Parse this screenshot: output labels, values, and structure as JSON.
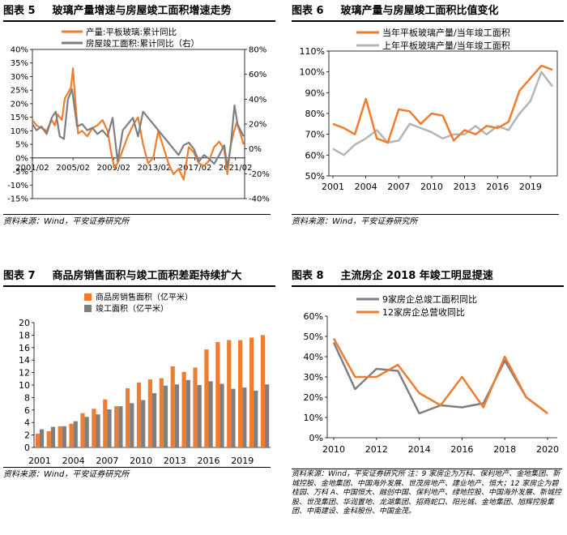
{
  "colors": {
    "orange": "#EE7D31",
    "gray": "#7F7F7F",
    "lightgray": "#B5B5B5"
  },
  "panels": [
    {
      "num": "图表 5",
      "title": "玻璃产量增速与房屋竣工面积增速走势",
      "source": "资料来源：Wind，平安证券研究所"
    },
    {
      "num": "图表 6",
      "title": "玻璃产量与房屋竣工面积比值变化",
      "source": "资料来源：Wind，平安证券研究所"
    },
    {
      "num": "图表 7",
      "title": "商品房销售面积与竣工面积差距持续扩大",
      "source": "资料来源：Wind，平安证券研究所"
    },
    {
      "num": "图表 8",
      "title": "主流房企 2018 年竣工明显提速",
      "source": "资料来源：Wind，平安证券研究所    注：9 家房企为万科、保利地产、金地集团、新城控股、金地集团、中国海外发展、世茂房地产、建业地产、恒大；12 家房企为碧桂园、万科 A、中国恒大、融创中国、保利地产、绿地控股、中国海外发展、新城控股、世茂集团、华润置地、龙湖集团、招商蛇口、阳光城、金地集团、旭辉控股集团、中南建设、金科股份、中国金茂。"
    }
  ],
  "chart_data": [
    {
      "type": "line",
      "title": "玻璃产量增速与房屋竣工面积增速走势",
      "x_tick_labels": [
        "2001/02",
        "2005/02",
        "2009/02",
        "2013/02",
        "2017/02",
        "2021/02"
      ],
      "x_range": [
        2001.1,
        2022.0
      ],
      "y_left_range": [
        -15,
        40
      ],
      "y_right_range": [
        -40,
        80
      ],
      "y_left_ticks": [
        "-15%",
        "-10%",
        "-5%",
        "0%",
        "5%",
        "10%",
        "15%",
        "20%",
        "25%",
        "30%",
        "35%",
        "40%"
      ],
      "y_right_ticks": [
        "-40%",
        "-20%",
        "0%",
        "20%",
        "40%",
        "60%",
        "80%"
      ],
      "series": [
        {
          "name": "产量:平板玻璃:累计同比",
          "axis": "left",
          "color": "#EE7D31",
          "x": [
            2001.1,
            2001.5,
            2002,
            2002.5,
            2003,
            2003.3,
            2003.6,
            2004,
            2004.3,
            2004.6,
            2004.9,
            2005.1,
            2005.3,
            2005.6,
            2006,
            2006.5,
            2007,
            2007.5,
            2008,
            2008.5,
            2008.9,
            2009.2,
            2009.6,
            2010,
            2010.5,
            2011,
            2011.5,
            2012,
            2012.5,
            2013,
            2013.5,
            2014,
            2014.5,
            2015,
            2015.5,
            2016,
            2016.5,
            2017,
            2017.5,
            2018,
            2018.5,
            2019,
            2019.5,
            2020,
            2020.3,
            2020.6,
            2020.9,
            2021.2,
            2021.5,
            2021.9
          ],
          "y": [
            14,
            12,
            11,
            10,
            14,
            12,
            16,
            14,
            22,
            24,
            26,
            33,
            22,
            9,
            10,
            8,
            11,
            12,
            14,
            10,
            1,
            -4,
            -1,
            3,
            8,
            12,
            15,
            5,
            -2,
            0,
            10,
            4,
            -2,
            -6,
            -4,
            -8,
            4,
            2,
            -2,
            -3,
            -1,
            4,
            6,
            3,
            -6,
            4,
            9,
            13,
            10,
            5
          ]
        },
        {
          "name": "房屋竣工面积:累计同比（右）",
          "axis": "right",
          "color": "#7F7F7F",
          "x": [
            2001.1,
            2001.5,
            2002,
            2002.5,
            2003,
            2003.4,
            2003.8,
            2004.2,
            2004.6,
            2005,
            2005.5,
            2006,
            2006.5,
            2007,
            2007.5,
            2008,
            2008.5,
            2009,
            2009.5,
            2010,
            2010.5,
            2011,
            2011.5,
            2012,
            2012.5,
            2013,
            2013.5,
            2014,
            2014.5,
            2015,
            2015.5,
            2016,
            2016.5,
            2017,
            2017.5,
            2018,
            2018.5,
            2019,
            2019.5,
            2020,
            2020.3,
            2020.6,
            2021,
            2021.3,
            2021.6,
            2021.9
          ],
          "y": [
            20,
            15,
            18,
            12,
            25,
            30,
            10,
            8,
            40,
            48,
            18,
            20,
            15,
            17,
            12,
            15,
            10,
            25,
            -10,
            15,
            20,
            25,
            10,
            30,
            25,
            20,
            15,
            10,
            5,
            0,
            -5,
            3,
            5,
            0,
            -10,
            -5,
            -8,
            -12,
            -5,
            3,
            -15,
            0,
            35,
            20,
            15,
            10
          ]
        }
      ]
    },
    {
      "type": "line",
      "title": "玻璃产量与房屋竣工面积比值变化",
      "categories": [
        "2001",
        "2002",
        "2003",
        "2004",
        "2005",
        "2006",
        "2007",
        "2008",
        "2009",
        "2010",
        "2011",
        "2012",
        "2013",
        "2014",
        "2015",
        "2016",
        "2017",
        "2018",
        "2019",
        "2020",
        "2021"
      ],
      "x_tick_labels": [
        "2001",
        "2004",
        "2007",
        "2010",
        "2013",
        "2016",
        "2019"
      ],
      "ylim": [
        50,
        110
      ],
      "y_ticks": [
        "50%",
        "60%",
        "70%",
        "80%",
        "90%",
        "100%",
        "110%"
      ],
      "series": [
        {
          "name": "当年平板玻璃产量/当年竣工面积",
          "color": "#EE7D31",
          "values": [
            75,
            73,
            70,
            87,
            68,
            66,
            82,
            81,
            75,
            80,
            79,
            67,
            72,
            70,
            74,
            73,
            76,
            91,
            97,
            103,
            101
          ]
        },
        {
          "name": "上年平板玻璃产量/当年竣工面积",
          "color": "#B5B5B5",
          "values": [
            63,
            60,
            65,
            68,
            72,
            66,
            67,
            75,
            73,
            71,
            68,
            70,
            70,
            74,
            70,
            74,
            72,
            80,
            86,
            100,
            93
          ]
        }
      ]
    },
    {
      "type": "bar",
      "categories": [
        "2001",
        "2002",
        "2003",
        "2004",
        "2005",
        "2006",
        "2007",
        "2008",
        "2009",
        "2010",
        "2011",
        "2012",
        "2013",
        "2014",
        "2015",
        "2016",
        "2017",
        "2018",
        "2019",
        "2020",
        "2021"
      ],
      "x_tick_labels": [
        "2001",
        "2004",
        "2007",
        "2010",
        "2013",
        "2016",
        "2019"
      ],
      "ylim": [
        0,
        20
      ],
      "y_ticks": [
        "0",
        "2",
        "4",
        "6",
        "8",
        "10",
        "12",
        "14",
        "16",
        "18",
        "20"
      ],
      "series": [
        {
          "name": "商品房销售面积（亿平米）",
          "color": "#EE7D31",
          "values": [
            2.2,
            2.6,
            3.4,
            3.8,
            5.5,
            6.2,
            7.7,
            6.6,
            9.5,
            10.4,
            10.9,
            11.1,
            13.0,
            12.1,
            12.8,
            15.7,
            16.9,
            17.2,
            17.2,
            17.6,
            18.0
          ]
        },
        {
          "name": "竣工面积（亿平米）",
          "color": "#7F7F7F",
          "values": [
            2.9,
            3.3,
            3.4,
            4.2,
            4.9,
            5.3,
            6.1,
            6.6,
            7.1,
            7.6,
            8.7,
            9.9,
            10.1,
            10.8,
            10.0,
            10.6,
            10.2,
            9.4,
            9.6,
            9.1,
            10.1
          ]
        }
      ]
    },
    {
      "type": "line",
      "title": "主流房企 2018 年竣工明显提速",
      "categories": [
        "2010",
        "2011",
        "2012",
        "2013",
        "2014",
        "2015",
        "2016",
        "2017",
        "2018",
        "2019",
        "2020"
      ],
      "x_tick_labels": [
        "2010",
        "2012",
        "2014",
        "2016",
        "2018",
        "2020"
      ],
      "ylim": [
        0,
        60
      ],
      "y_ticks": [
        "0%",
        "10%",
        "20%",
        "30%",
        "40%",
        "50%",
        "60%"
      ],
      "series": [
        {
          "name": "9家房企总竣工面积同比",
          "color": "#7F7F7F",
          "values": [
            47,
            24,
            34,
            33,
            12,
            16,
            15,
            17,
            38,
            20,
            12
          ]
        },
        {
          "name": "12家房企总营收同比",
          "color": "#EE7D31",
          "values": [
            49,
            30,
            30,
            36,
            22,
            16,
            30,
            15,
            40,
            20,
            12
          ]
        }
      ]
    }
  ]
}
